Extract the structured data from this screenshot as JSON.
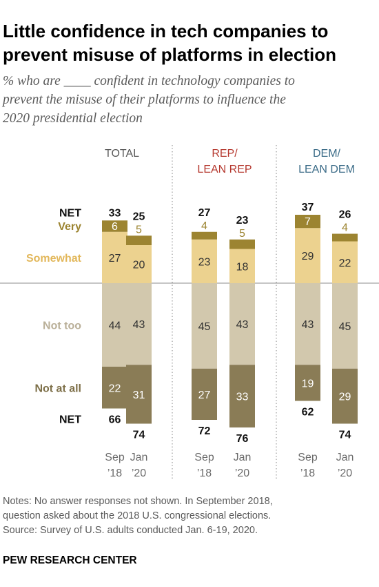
{
  "header": {
    "title_line1": "Little confidence in tech companies to",
    "title_line2": "prevent misuse of platforms in election",
    "subtitle_line1": "% who are ____ confident in technology companies to",
    "subtitle_line2": "prevent the misuse of their platforms to influence the",
    "subtitle_line3": "2020 presidential election"
  },
  "footer": {
    "note_line1": "Notes: No answer responses not shown. In September 2018,",
    "note_line2": "question asked about the 2018 U.S. congressional elections.",
    "source": "Source: Survey of U.S. adults conducted Jan. 6-19, 2020.",
    "brand": "PEW RESEARCH CENTER"
  },
  "colors": {
    "very": "#9c8431",
    "somewhat": "#ecd28f",
    "not_too": "#d2c8ad",
    "not_at_all": "#8a7c56",
    "total_label": "#595959",
    "rep_label": "#b5382e",
    "dem_label": "#3a6b87",
    "very_label": "#9c8431",
    "somewhat_label": "#e2b75a",
    "not_too_label": "#bab099",
    "not_at_all_label": "#7d6f48"
  },
  "chart_data": {
    "type": "bar",
    "stacked": "diverging",
    "row_labels": {
      "net_top": "NET",
      "very": "Very",
      "somewhat": "Somewhat",
      "not_too": "Not too",
      "not_at_all": "Not at all",
      "net_bottom": "NET"
    },
    "groups": [
      {
        "label_lines": [
          "TOTAL"
        ],
        "color_key": "total_label",
        "bars": [
          {
            "label_lines": [
              "Sep",
              "’18"
            ],
            "net_confident": 33,
            "very": 6,
            "somewhat": 27,
            "not_too": 44,
            "not_at_all": 22,
            "net_not_confident": 66
          },
          {
            "label_lines": [
              "Jan",
              "’20"
            ],
            "net_confident": 25,
            "very": 5,
            "somewhat": 20,
            "not_too": 43,
            "not_at_all": 31,
            "net_not_confident": 74
          }
        ]
      },
      {
        "label_lines": [
          "REP/",
          "LEAN REP"
        ],
        "color_key": "rep_label",
        "bars": [
          {
            "label_lines": [
              "Sep",
              "’18"
            ],
            "net_confident": 27,
            "very": 4,
            "somewhat": 23,
            "not_too": 45,
            "not_at_all": 27,
            "net_not_confident": 72
          },
          {
            "label_lines": [
              "Jan",
              "’20"
            ],
            "net_confident": 23,
            "very": 5,
            "somewhat": 18,
            "not_too": 43,
            "not_at_all": 33,
            "net_not_confident": 76
          }
        ]
      },
      {
        "label_lines": [
          "DEM/",
          "LEAN DEM"
        ],
        "color_key": "dem_label",
        "bars": [
          {
            "label_lines": [
              "Sep",
              "’18"
            ],
            "net_confident": 37,
            "very": 7,
            "somewhat": 29,
            "not_too": 43,
            "not_at_all": 19,
            "net_not_confident": 62
          },
          {
            "label_lines": [
              "Jan",
              "’20"
            ],
            "net_confident": 26,
            "very": 4,
            "somewhat": 22,
            "not_too": 45,
            "not_at_all": 29,
            "net_not_confident": 74
          }
        ]
      }
    ]
  }
}
